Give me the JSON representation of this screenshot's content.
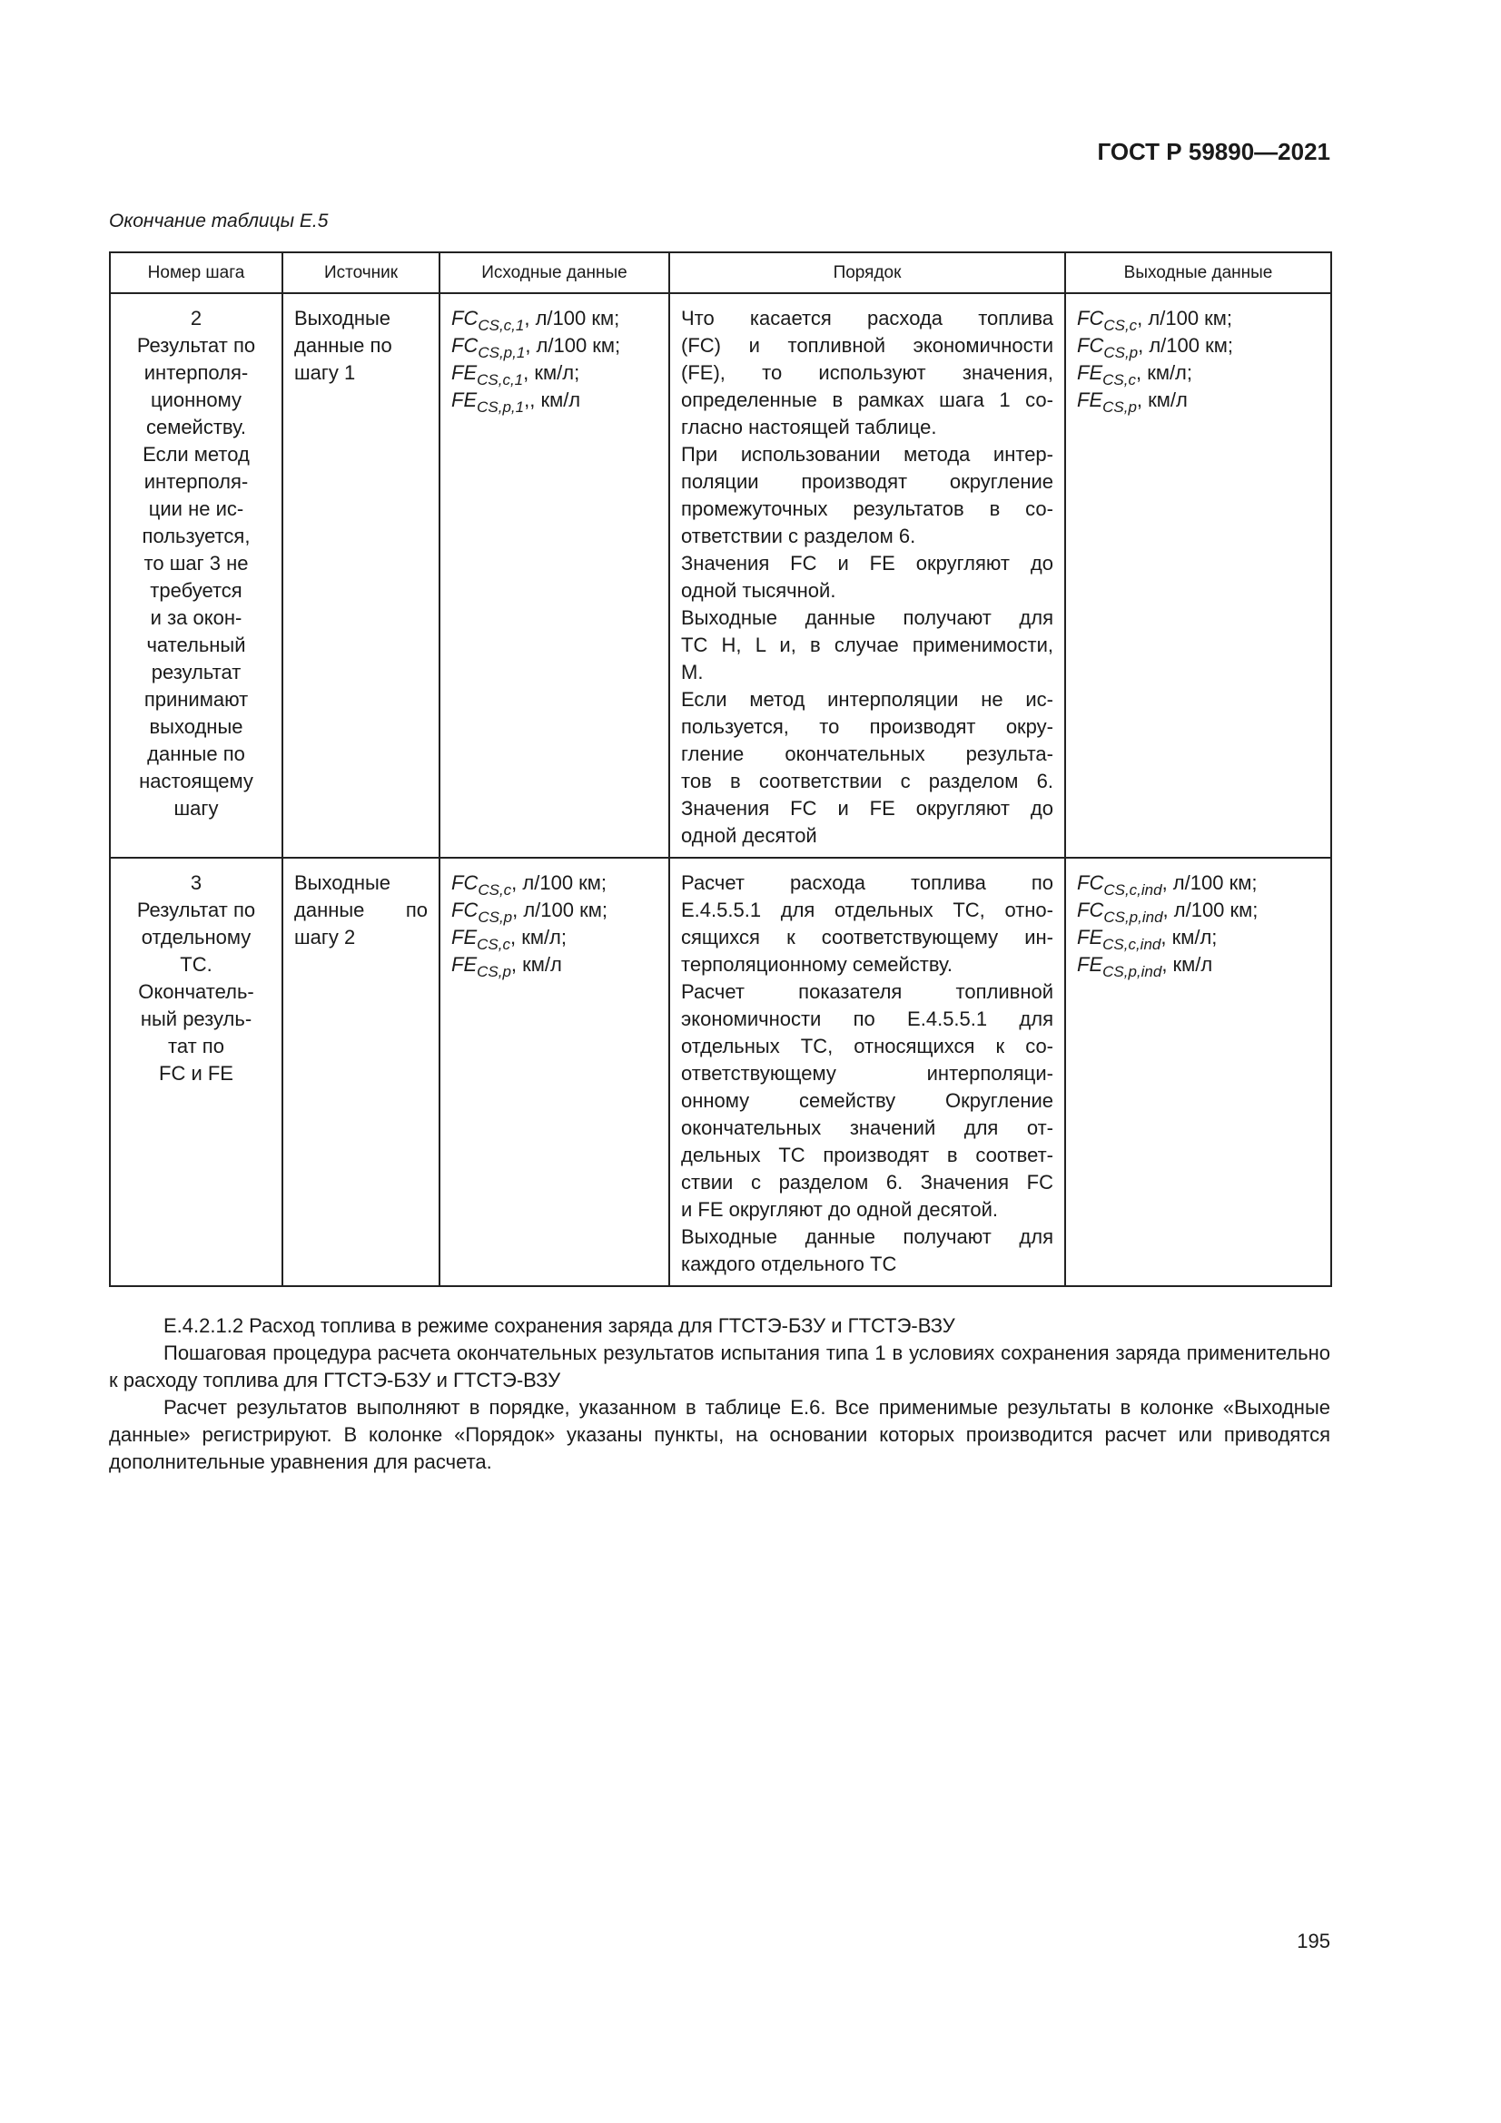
{
  "header": {
    "standard": "ГОСТ Р 59890—2021",
    "caption": "Окончание таблицы Е.5"
  },
  "table": {
    "columns": [
      "Номер шага",
      "Источник",
      "Исходные данные",
      "Порядок",
      "Выходные данные"
    ],
    "rows": [
      {
        "step": [
          "2",
          "Результат по",
          "интерполя-",
          "ционному",
          "семейству.",
          "Если метод",
          "интерполя-",
          "ции не ис-",
          "пользуется,",
          "то шаг 3 не",
          "требуется",
          "и за окон-",
          "чательный",
          "результат",
          "принимают",
          "выходные",
          "данные по",
          "настоящему",
          "шагу"
        ],
        "source": [
          [
            "Выходные"
          ],
          [
            "данные по"
          ],
          [
            "шагу 1"
          ]
        ],
        "source_justify": false,
        "input": [
          {
            "sym": "FC",
            "sub": "CS,c,1",
            "unit": ", л/100 км;"
          },
          {
            "sym": "FC",
            "sub": "CS,p,1",
            "unit": ", л/100 км;"
          },
          {
            "sym": "FE",
            "sub": "CS,c,1",
            "unit": ", км/л;"
          },
          {
            "sym": "FE",
            "sub": "CS,p,1",
            "unit": ",, км/л"
          }
        ],
        "procedure": [
          [
            "Что касается расхода топлива",
            "(FC) и топливной экономичности",
            "(FE), то используют значения,",
            "определенные в рамках шага 1 со-",
            "гласно настоящей таблице."
          ],
          [
            "При использовании метода интер-",
            "поляции производят округление",
            "промежуточных результатов в со-",
            "ответствии с разделом 6."
          ],
          [
            "Значения FC и FE округляют до",
            "одной тысячной."
          ],
          [
            "Выходные данные получают для",
            "ТС H, L и, в случае применимости,",
            "M."
          ],
          [
            "Если метод интерполяции не ис-",
            "пользуется, то производят окру-",
            "гление окончательных результа-",
            "тов в соответствии с разделом 6.",
            "Значения FC и FE округляют до",
            "одной десятой"
          ]
        ],
        "output": [
          {
            "sym": "FC",
            "sub": "CS,c",
            "unit": ", л/100 км;"
          },
          {
            "sym": "FC",
            "sub": "CS,p",
            "unit": ", л/100 км;"
          },
          {
            "sym": "FE",
            "sub": "CS,c",
            "unit": ", км/л;"
          },
          {
            "sym": "FE",
            "sub": "CS,p",
            "unit": ", км/л"
          }
        ]
      },
      {
        "step": [
          "3",
          "Результат по",
          "отдельному",
          "ТС.",
          "Окончатель-",
          "ный резуль-",
          "тат по",
          "FC и FE"
        ],
        "source": [
          [
            "Выходные"
          ],
          [
            "данные по"
          ],
          [
            "шагу 2"
          ]
        ],
        "source_justify": true,
        "input": [
          {
            "sym": "FC",
            "sub": "CS,c",
            "unit": ", л/100 км;"
          },
          {
            "sym": "FC",
            "sub": "CS,p",
            "unit": ", л/100 км;"
          },
          {
            "sym": "FE",
            "sub": "CS,c",
            "unit": ", км/л;"
          },
          {
            "sym": "FE",
            "sub": "CS,p",
            "unit": ", км/л"
          }
        ],
        "procedure": [
          [
            "Расчет расхода топлива по",
            "Е.4.5.5.1 для отдельных ТС, отно-",
            "сящихся к соответствующему ин-",
            "терполяционному семейству."
          ],
          [
            "Расчет показателя топливной",
            "экономичности по Е.4.5.5.1 для",
            "отдельных ТС, относящихся к со-",
            "ответствующему интерполяци-",
            "онному семейству Округление",
            "окончательных значений для от-",
            "дельных ТС производят в соответ-",
            "ствии с разделом 6. Значения FC",
            "и FE округляют до одной десятой."
          ],
          [
            "Выходные данные получают для",
            "каждого отдельного ТС"
          ]
        ],
        "output": [
          {
            "sym": "FC",
            "sub": "CS,c,ind",
            "unit": ", л/100 км;"
          },
          {
            "sym": "FC",
            "sub": "CS,p,ind",
            "unit": ", л/100 км;"
          },
          {
            "sym": "FE",
            "sub": "CS,c,ind",
            "unit": ", км/л;"
          },
          {
            "sym": "FE",
            "sub": "CS,p,ind",
            "unit": ", км/л"
          }
        ]
      }
    ]
  },
  "body": [
    "Е.4.2.1.2 Расход топлива в режиме сохранения заряда для ГТСТЭ-БЗУ и ГТСТЭ-ВЗУ",
    "Пошаговая процедура расчета окончательных результатов испытания типа 1 в условиях сохранения заряда применительно к расходу топлива для ГТСТЭ-БЗУ и ГТСТЭ-ВЗУ",
    "Расчет результатов выполняют в порядке, указанном в таблице Е.6. Все применимые результаты в колонке «Выходные данные» регистрируют. В колонке «Порядок» указаны пункты, на основании которых производится расчет или приводятся дополнительные уравнения для расчета."
  ],
  "page_number": "195"
}
